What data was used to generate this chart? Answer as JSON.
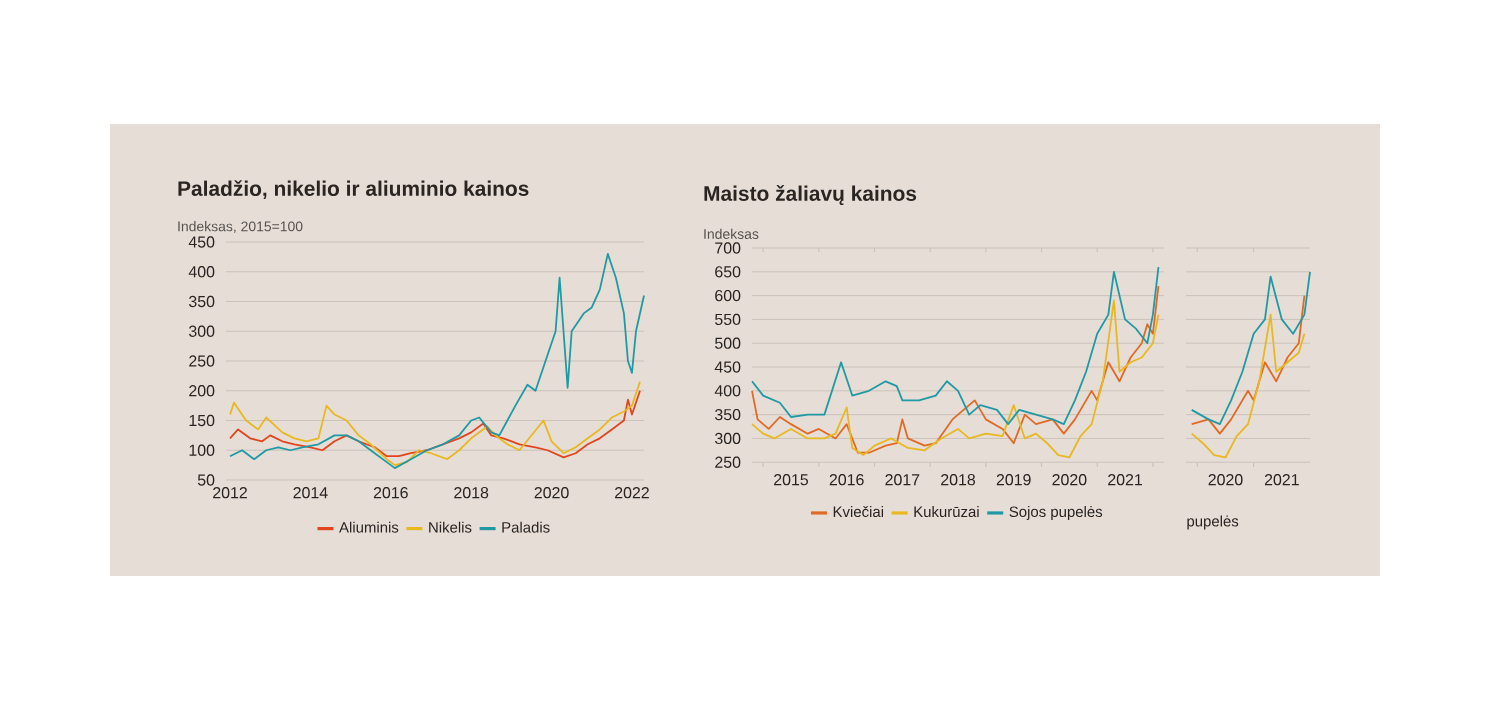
{
  "chart_data": [
    {
      "type": "line",
      "title": "Paladžio, nikelio ir aliuminio kainos",
      "ylabel": "Indeksas, 2015=100",
      "xlim": [
        2011.9,
        2022.3
      ],
      "ylim": [
        50,
        450
      ],
      "xticks": [
        2012,
        2014,
        2016,
        2018,
        2020,
        2022
      ],
      "yticks": [
        50,
        100,
        150,
        200,
        250,
        300,
        350,
        400,
        450
      ],
      "grid": "y",
      "legend": "bottom",
      "series": [
        {
          "name": "Aliuminis",
          "color": "#e0461e",
          "x": [
            2012,
            2012.2,
            2012.5,
            2012.8,
            2013,
            2013.3,
            2013.6,
            2014,
            2014.3,
            2014.6,
            2014.9,
            2015.2,
            2015.6,
            2015.9,
            2016.2,
            2016.5,
            2016.9,
            2017.3,
            2017.7,
            2018.0,
            2018.3,
            2018.5,
            2018.8,
            2019.2,
            2019.6,
            2019.9,
            2020.3,
            2020.6,
            2020.9,
            2021.2,
            2021.5,
            2021.8,
            2021.9,
            2022.0,
            2022.2
          ],
          "values": [
            120,
            135,
            120,
            115,
            125,
            115,
            110,
            105,
            100,
            115,
            125,
            115,
            105,
            90,
            90,
            95,
            100,
            110,
            120,
            130,
            145,
            125,
            120,
            110,
            105,
            100,
            88,
            95,
            110,
            120,
            135,
            150,
            185,
            160,
            200
          ]
        },
        {
          "name": "Nikelis",
          "color": "#e8b820",
          "x": [
            2012,
            2012.1,
            2012.4,
            2012.7,
            2012.9,
            2013.3,
            2013.6,
            2013.9,
            2014.2,
            2014.4,
            2014.6,
            2014.9,
            2015.2,
            2015.5,
            2015.9,
            2016.1,
            2016.4,
            2016.7,
            2017.0,
            2017.4,
            2017.7,
            2018.0,
            2018.4,
            2018.6,
            2018.9,
            2019.2,
            2019.5,
            2019.8,
            2020.0,
            2020.3,
            2020.6,
            2020.9,
            2021.2,
            2021.5,
            2021.8,
            2022.0,
            2022.2
          ],
          "values": [
            160,
            180,
            150,
            135,
            155,
            130,
            120,
            115,
            120,
            175,
            160,
            150,
            125,
            110,
            85,
            75,
            80,
            100,
            95,
            85,
            100,
            120,
            140,
            125,
            110,
            100,
            125,
            150,
            115,
            95,
            105,
            120,
            135,
            155,
            165,
            175,
            215
          ]
        },
        {
          "name": "Paladis",
          "color": "#1f9aa5",
          "x": [
            2012,
            2012.3,
            2012.6,
            2012.9,
            2013.2,
            2013.5,
            2013.8,
            2014.2,
            2014.6,
            2014.9,
            2015.2,
            2015.6,
            2015.9,
            2016.1,
            2016.5,
            2016.9,
            2017.3,
            2017.7,
            2018.0,
            2018.2,
            2018.5,
            2018.7,
            2018.9,
            2019.1,
            2019.4,
            2019.6,
            2019.9,
            2020.1,
            2020.2,
            2020.4,
            2020.5,
            2020.8,
            2021.0,
            2021.2,
            2021.4,
            2021.6,
            2021.8,
            2021.9,
            2022.0,
            2022.1,
            2022.3
          ],
          "values": [
            90,
            100,
            85,
            100,
            105,
            100,
            105,
            110,
            125,
            125,
            115,
            95,
            80,
            70,
            85,
            100,
            110,
            125,
            150,
            155,
            130,
            125,
            150,
            175,
            210,
            200,
            260,
            300,
            390,
            205,
            300,
            330,
            340,
            370,
            430,
            390,
            330,
            250,
            230,
            300,
            360
          ]
        }
      ]
    },
    {
      "type": "line",
      "title": "Maisto žaliavų kainos",
      "ylabel": "Indeksas",
      "xlim": [
        2014.8,
        2022.2
      ],
      "ylim": [
        240,
        700
      ],
      "xticks": [
        {
          "value": 2015,
          "label": null
        },
        {
          "value": 2015.5,
          "label": "2015"
        },
        {
          "value": 2016,
          "label": null
        },
        {
          "value": 2016.5,
          "label": "2016"
        },
        {
          "value": 2017,
          "label": null
        },
        {
          "value": 2017.5,
          "label": "2017"
        },
        {
          "value": 2018,
          "label": null
        },
        {
          "value": 2018.5,
          "label": "2018"
        },
        {
          "value": 2019,
          "label": null
        },
        {
          "value": 2019.5,
          "label": "2019"
        },
        {
          "value": 2020,
          "label": null
        },
        {
          "value": 2020.5,
          "label": "2020"
        },
        {
          "value": 2021,
          "label": null
        },
        {
          "value": 2021.5,
          "label": "2021"
        },
        {
          "value": 2022,
          "label": null
        }
      ],
      "yticks": [
        250,
        300,
        350,
        400,
        450,
        500,
        550,
        600,
        650,
        700
      ],
      "grid": "y",
      "legend": "bottom",
      "series": [
        {
          "name": "Kviečiai",
          "color": "#e06a25",
          "x": [
            2014.8,
            2014.9,
            2015.1,
            2015.3,
            2015.5,
            2015.8,
            2016.0,
            2016.3,
            2016.5,
            2016.7,
            2016.9,
            2017.2,
            2017.4,
            2017.5,
            2017.6,
            2017.9,
            2018.1,
            2018.4,
            2018.6,
            2018.8,
            2019.0,
            2019.3,
            2019.5,
            2019.7,
            2019.9,
            2020.2,
            2020.4,
            2020.6,
            2020.9,
            2021.0,
            2021.2,
            2021.4,
            2021.6,
            2021.8,
            2021.9,
            2022.0,
            2022.1
          ],
          "values": [
            400,
            340,
            320,
            345,
            330,
            310,
            320,
            300,
            330,
            270,
            270,
            285,
            290,
            340,
            300,
            285,
            290,
            340,
            360,
            380,
            340,
            320,
            290,
            350,
            330,
            340,
            310,
            340,
            400,
            380,
            460,
            420,
            470,
            500,
            540,
            520,
            620
          ]
        },
        {
          "name": "Kukurūzai",
          "color": "#e8b820",
          "x": [
            2014.8,
            2015.0,
            2015.2,
            2015.5,
            2015.8,
            2016.1,
            2016.3,
            2016.5,
            2016.6,
            2016.8,
            2017.0,
            2017.3,
            2017.6,
            2017.9,
            2018.2,
            2018.5,
            2018.7,
            2019.0,
            2019.3,
            2019.5,
            2019.7,
            2019.9,
            2020.1,
            2020.3,
            2020.5,
            2020.7,
            2020.9,
            2021.1,
            2021.3,
            2021.4,
            2021.6,
            2021.8,
            2022.0,
            2022.1
          ],
          "values": [
            330,
            310,
            300,
            320,
            300,
            300,
            310,
            365,
            280,
            265,
            285,
            300,
            280,
            275,
            300,
            320,
            300,
            310,
            305,
            370,
            300,
            310,
            290,
            265,
            260,
            305,
            330,
            420,
            590,
            440,
            460,
            470,
            500,
            560
          ]
        },
        {
          "name": "Sojos pupelės",
          "color": "#1f9aa5",
          "x": [
            2014.8,
            2015.0,
            2015.3,
            2015.5,
            2015.8,
            2016.1,
            2016.4,
            2016.6,
            2016.9,
            2017.2,
            2017.4,
            2017.5,
            2017.8,
            2018.1,
            2018.3,
            2018.5,
            2018.7,
            2018.9,
            2019.2,
            2019.4,
            2019.6,
            2019.9,
            2020.2,
            2020.4,
            2020.6,
            2020.8,
            2021.0,
            2021.2,
            2021.3,
            2021.5,
            2021.7,
            2021.9,
            2022.0,
            2022.1
          ],
          "values": [
            420,
            390,
            375,
            345,
            350,
            350,
            460,
            390,
            400,
            420,
            410,
            380,
            380,
            390,
            420,
            400,
            350,
            370,
            360,
            330,
            360,
            350,
            340,
            330,
            380,
            440,
            520,
            560,
            650,
            550,
            530,
            500,
            560,
            660
          ]
        }
      ]
    },
    {
      "type": "line",
      "xlim": [
        2019.8,
        2022.0
      ],
      "ylim": [
        240,
        700
      ],
      "xticks": [
        {
          "value": 2020,
          "label": null
        },
        {
          "value": 2020.5,
          "label": "2020"
        },
        {
          "value": 2021,
          "label": null
        },
        {
          "value": 2021.5,
          "label": "2021"
        }
      ],
      "yticks": [
        250,
        300,
        350,
        400,
        450,
        500,
        550,
        600,
        650,
        700
      ],
      "grid": "y",
      "tick_labels": "x",
      "annotations": [
        "pupelės"
      ],
      "series": [
        {
          "color": "#e06a25",
          "x": [
            2019.9,
            2020.2,
            2020.4,
            2020.6,
            2020.9,
            2021.0,
            2021.2,
            2021.4,
            2021.6,
            2021.8,
            2021.9
          ],
          "values": [
            330,
            340,
            310,
            340,
            400,
            380,
            460,
            420,
            470,
            500,
            600
          ]
        },
        {
          "color": "#e8b820",
          "x": [
            2019.9,
            2020.1,
            2020.3,
            2020.5,
            2020.7,
            2020.9,
            2021.1,
            2021.3,
            2021.4,
            2021.6,
            2021.8,
            2021.9
          ],
          "values": [
            310,
            290,
            265,
            260,
            305,
            330,
            420,
            560,
            440,
            460,
            480,
            520
          ]
        },
        {
          "color": "#1f9aa5",
          "x": [
            2019.9,
            2020.2,
            2020.4,
            2020.6,
            2020.8,
            2021.0,
            2021.2,
            2021.3,
            2021.5,
            2021.7,
            2021.9,
            2022.0
          ],
          "values": [
            360,
            340,
            330,
            380,
            440,
            520,
            550,
            640,
            550,
            520,
            560,
            650
          ]
        }
      ]
    }
  ]
}
